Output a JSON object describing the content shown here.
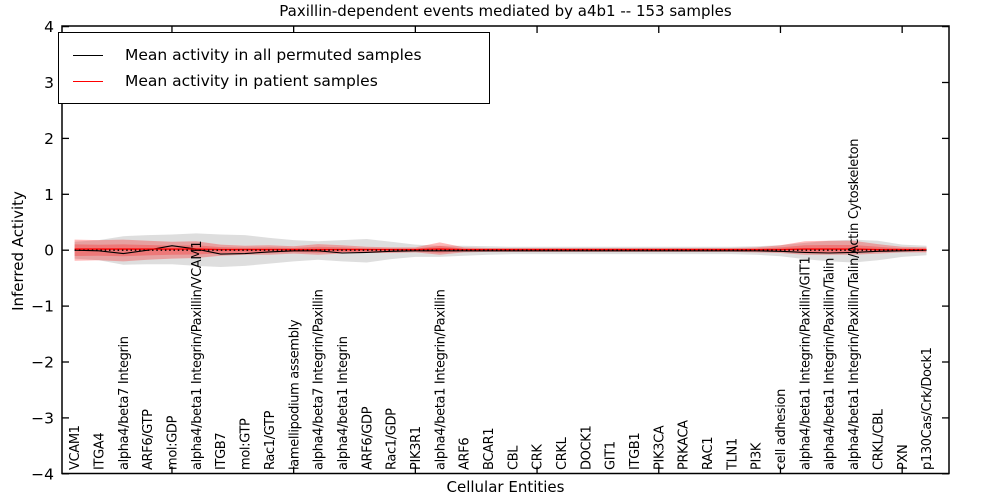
{
  "chart_data": {
    "type": "line",
    "title": "Paxillin-dependent events mediated by a4b1 -- 153 samples",
    "xlabel": "Cellular Entities",
    "ylabel": "Inferred Activity",
    "ylim": [
      -4,
      4
    ],
    "yticks": [
      4,
      3,
      2,
      1,
      0,
      -1,
      -2,
      -3,
      -4
    ],
    "grid": false,
    "legend_position": "upper left",
    "reference_line": {
      "y": 0,
      "style": "dotted",
      "color": "#000000"
    },
    "tick_category_indices": [
      4,
      9,
      14,
      19,
      24,
      29,
      34
    ],
    "categories": [
      "VCAM1",
      "ITGA4",
      "alpha4/beta7 Integrin",
      "ARF6/GTP",
      "mol:GDP",
      "alpha4/beta1 Integrin/Paxillin/VCAM1",
      "ITGB7",
      "mol:GTP",
      "Rac1/GTP",
      "lamellipodium assembly",
      "alpha4/beta7 Integrin/Paxillin",
      "alpha4/beta1 Integrin",
      "ARF6/GDP",
      "Rac1/GDP",
      "PIK3R1",
      "alpha4/beta1 Integrin/Paxillin",
      "ARF6",
      "BCAR1",
      "CBL",
      "CRK",
      "CRKL",
      "DOCK1",
      "GIT1",
      "ITGB1",
      "PIK3CA",
      "PRKACA",
      "RAC1",
      "TLN1",
      "PI3K",
      "cell adhesion",
      "alpha4/beta1 Integrin/Paxillin/GIT1",
      "alpha4/beta1 Integrin/Paxillin/Talin",
      "alpha4/beta1 Integrin/Paxillin/Talin/Actin Cytoskeleton",
      "CRKL/CBL",
      "PXN",
      "p130Cas/Crk/Dock1"
    ],
    "series": [
      {
        "name": "Mean activity in all permuted samples",
        "color": "#000000",
        "band_color": "#999999",
        "values": [
          0.0,
          -0.01,
          -0.06,
          0.0,
          0.08,
          0.02,
          -0.07,
          -0.06,
          -0.03,
          -0.01,
          -0.01,
          -0.05,
          -0.04,
          -0.02,
          -0.01,
          -0.01,
          -0.01,
          -0.01,
          -0.01,
          -0.01,
          -0.01,
          -0.01,
          -0.01,
          -0.01,
          -0.01,
          -0.01,
          -0.01,
          -0.01,
          -0.01,
          -0.02,
          -0.04,
          -0.05,
          -0.04,
          -0.02,
          -0.01,
          0.0
        ],
        "band_upper": [
          0.15,
          0.18,
          0.25,
          0.27,
          0.28,
          0.3,
          0.28,
          0.27,
          0.22,
          0.18,
          0.16,
          0.18,
          0.2,
          0.15,
          0.1,
          0.08,
          0.08,
          0.07,
          0.06,
          0.06,
          0.06,
          0.06,
          0.06,
          0.06,
          0.06,
          0.06,
          0.06,
          0.06,
          0.07,
          0.09,
          0.13,
          0.17,
          0.19,
          0.17,
          0.1,
          0.08
        ],
        "band_lower": [
          -0.15,
          -0.18,
          -0.26,
          -0.25,
          -0.25,
          -0.28,
          -0.3,
          -0.28,
          -0.24,
          -0.2,
          -0.17,
          -0.2,
          -0.22,
          -0.16,
          -0.12,
          -0.12,
          -0.1,
          -0.08,
          -0.07,
          -0.07,
          -0.07,
          -0.07,
          -0.07,
          -0.07,
          -0.07,
          -0.07,
          -0.07,
          -0.07,
          -0.08,
          -0.11,
          -0.16,
          -0.2,
          -0.22,
          -0.18,
          -0.12,
          -0.09
        ]
      },
      {
        "name": "Mean activity in patient samples",
        "color": "#ff0000",
        "band_color": "#ff0000",
        "values": [
          0.02,
          0.02,
          0.02,
          0.02,
          0.02,
          0.02,
          0.01,
          0.01,
          0.01,
          0.01,
          0.01,
          0.01,
          0.01,
          0.01,
          0.01,
          0.02,
          0.01,
          0.01,
          0.01,
          0.01,
          0.01,
          0.01,
          0.01,
          0.01,
          0.01,
          0.01,
          0.01,
          0.01,
          0.01,
          0.01,
          0.02,
          0.02,
          0.02,
          0.01,
          0.01,
          0.01
        ],
        "band_upper": [
          0.19,
          0.18,
          0.19,
          0.17,
          0.15,
          0.16,
          0.1,
          0.08,
          0.09,
          0.07,
          0.11,
          0.09,
          0.06,
          0.05,
          0.05,
          0.14,
          0.05,
          0.04,
          0.04,
          0.04,
          0.04,
          0.04,
          0.04,
          0.04,
          0.04,
          0.04,
          0.04,
          0.04,
          0.05,
          0.09,
          0.16,
          0.17,
          0.17,
          0.11,
          0.06,
          0.05
        ],
        "band_lower": [
          -0.19,
          -0.18,
          -0.2,
          -0.17,
          -0.15,
          -0.14,
          -0.1,
          -0.08,
          -0.08,
          -0.06,
          -0.08,
          -0.06,
          -0.05,
          -0.05,
          -0.04,
          -0.08,
          -0.04,
          -0.03,
          -0.03,
          -0.03,
          -0.03,
          -0.03,
          -0.03,
          -0.03,
          -0.03,
          -0.03,
          -0.03,
          -0.03,
          -0.04,
          -0.05,
          -0.08,
          -0.08,
          -0.08,
          -0.06,
          -0.04,
          -0.04
        ]
      }
    ]
  }
}
